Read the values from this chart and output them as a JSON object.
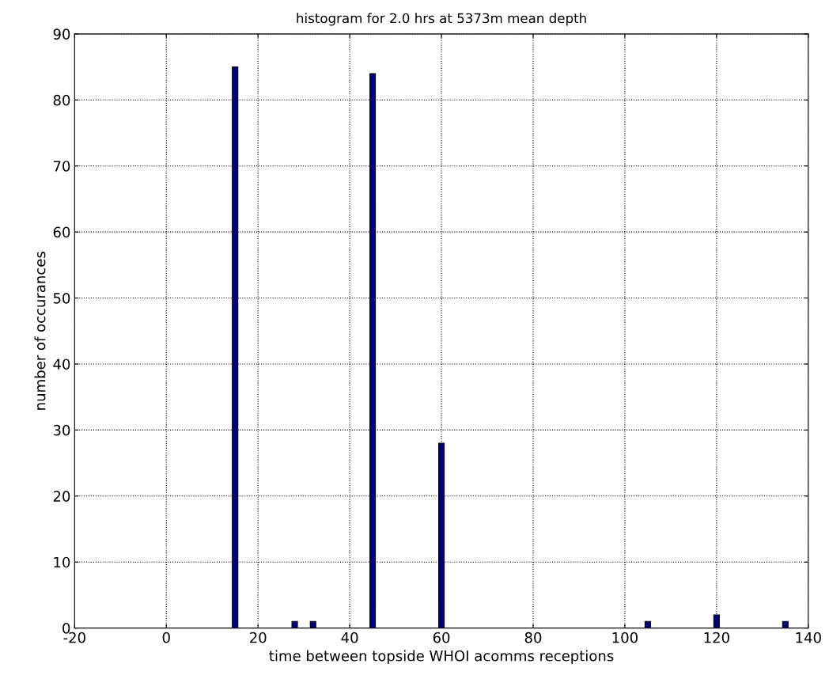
{
  "chart_data": {
    "type": "histogram",
    "title": "histogram for 2.0 hrs at 5373m mean depth",
    "xlabel": "time between topside WHOI acomms receptions",
    "ylabel": "number of occurances",
    "bins": [
      14.4,
      15.6,
      27.4,
      28.6,
      31.4,
      32.6,
      44.4,
      45.6,
      59.4,
      60.6,
      104.4,
      105.6,
      119.4,
      120.6,
      134.4,
      135.6
    ],
    "values": [
      85,
      0,
      1,
      0,
      1,
      0,
      84,
      0,
      28,
      0,
      1,
      0,
      2,
      0,
      1
    ],
    "color": "#00007f",
    "xlim": [
      -20,
      140
    ],
    "xticks": [
      -20,
      0,
      20,
      40,
      60,
      80,
      100,
      120,
      140
    ],
    "ylim": [
      0,
      90
    ],
    "yticks": [
      0,
      10,
      20,
      30,
      40,
      50,
      60,
      70,
      80,
      90
    ],
    "grid": true
  }
}
